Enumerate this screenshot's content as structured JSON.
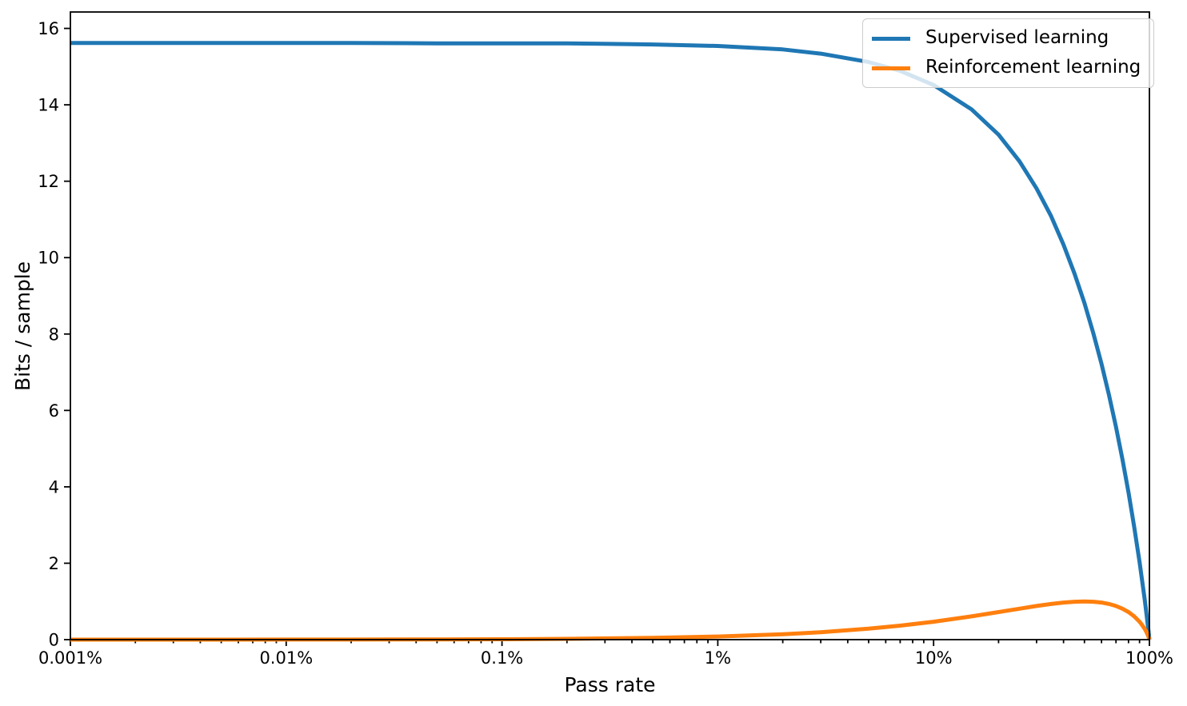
{
  "figure": {
    "background": "#ffffff",
    "spine_color": "#000000",
    "tick_color": "#000000"
  },
  "chart_data": {
    "type": "line",
    "title": "",
    "xlabel": "Pass rate",
    "ylabel": "Bits / sample",
    "x_scale": "log",
    "x_unit": "%",
    "xlim_percent": [
      0.001,
      100
    ],
    "ylim": [
      0,
      16.43
    ],
    "grid": false,
    "legend_position": "upper right",
    "x_major_ticks": [
      {
        "value": 0.001,
        "label": "0.001%"
      },
      {
        "value": 0.01,
        "label": "0.01%"
      },
      {
        "value": 0.1,
        "label": "0.1%"
      },
      {
        "value": 1,
        "label": "1%"
      },
      {
        "value": 10,
        "label": "10%"
      },
      {
        "value": 100,
        "label": "100%"
      }
    ],
    "y_ticks": [
      {
        "value": 0,
        "label": "0"
      },
      {
        "value": 2,
        "label": "2"
      },
      {
        "value": 4,
        "label": "4"
      },
      {
        "value": 6,
        "label": "6"
      },
      {
        "value": 8,
        "label": "8"
      },
      {
        "value": 10,
        "label": "10"
      },
      {
        "value": 12,
        "label": "12"
      },
      {
        "value": 14,
        "label": "14"
      },
      {
        "value": 16,
        "label": "16"
      }
    ],
    "legend": {
      "entries": [
        {
          "name": "Supervised learning",
          "color": "#1f77b4"
        },
        {
          "name": "Reinforcement learning",
          "color": "#ff7f0e"
        }
      ]
    },
    "x_percent": [
      0.001,
      0.002,
      0.005,
      0.01,
      0.02,
      0.05,
      0.1,
      0.2,
      0.5,
      1,
      2,
      3,
      5,
      7,
      10,
      15,
      20,
      25,
      30,
      35,
      40,
      45,
      50,
      55,
      60,
      65,
      70,
      75,
      80,
      85,
      90,
      92,
      95,
      96,
      97,
      98,
      99,
      100
    ],
    "series": [
      {
        "name": "Supervised learning",
        "color": "#1f77b4",
        "linewidth": 5,
        "values": [
          15.62,
          15.62,
          15.62,
          15.62,
          15.62,
          15.61,
          15.61,
          15.61,
          15.58,
          15.54,
          15.45,
          15.34,
          15.12,
          14.89,
          14.52,
          13.88,
          13.22,
          12.52,
          11.81,
          11.09,
          10.34,
          9.58,
          8.81,
          8.02,
          7.22,
          6.4,
          5.57,
          4.72,
          3.85,
          2.95,
          2.03,
          1.65,
          1.07,
          0.87,
          0.66,
          0.45,
          0.24,
          0.0
        ]
      },
      {
        "name": "Reinforcement learning",
        "color": "#ff7f0e",
        "linewidth": 5,
        "values": [
          0.0,
          0.0,
          0.001,
          0.002,
          0.003,
          0.006,
          0.011,
          0.021,
          0.045,
          0.081,
          0.141,
          0.194,
          0.286,
          0.366,
          0.469,
          0.61,
          0.722,
          0.811,
          0.881,
          0.934,
          0.971,
          0.993,
          1.0,
          0.993,
          0.971,
          0.934,
          0.881,
          0.811,
          0.722,
          0.61,
          0.469,
          0.402,
          0.286,
          0.242,
          0.194,
          0.141,
          0.081,
          0.0
        ]
      }
    ]
  }
}
